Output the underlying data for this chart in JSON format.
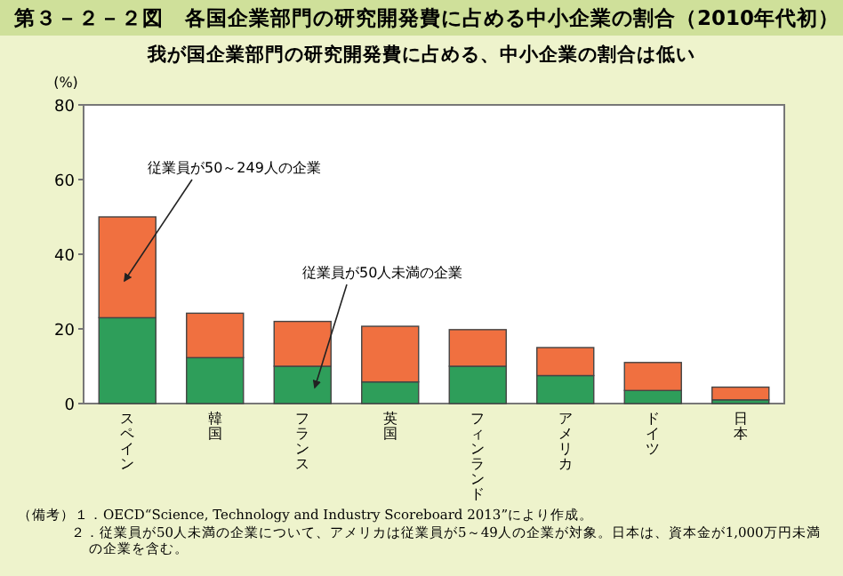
{
  "chart_data": {
    "type": "bar",
    "stacked": true,
    "title": "第３－２－２図　各国企業部門の研究開発費に占める中小企業の割合（2010年代初）",
    "subtitle": "我が国企業部門の研究開発費に占める、中小企業の割合は低い",
    "ylabel": "(%)",
    "categories": [
      "スペイン",
      "韓国",
      "フランス",
      "英国",
      "フィンランド",
      "アメリカ",
      "ドイツ",
      "日本"
    ],
    "series": [
      {
        "color": "#2e9e5a",
        "values": [
          23,
          12.3,
          10,
          5.8,
          10,
          7.5,
          3.5,
          1
        ]
      },
      {
        "color": "#f07040",
        "values": [
          27,
          11.9,
          12,
          14.9,
          9.8,
          7.5,
          7.5,
          3.4
        ]
      }
    ],
    "ylim": [
      0,
      80
    ],
    "yticks": [
      0,
      20,
      40,
      60,
      80
    ],
    "grid": false,
    "annotations": [
      "従業員が50～249人の企業",
      "従業員が50人未満の企業",
      "（備考）１．OECD“Science, Technology and Industry Scoreboard 2013”により作成。",
      "２．従業員が50人未満の企業について、アメリカは従業員が5～49人の企業が対象。日本は、資本金が1,000万円未満の企業を含む。"
    ]
  }
}
